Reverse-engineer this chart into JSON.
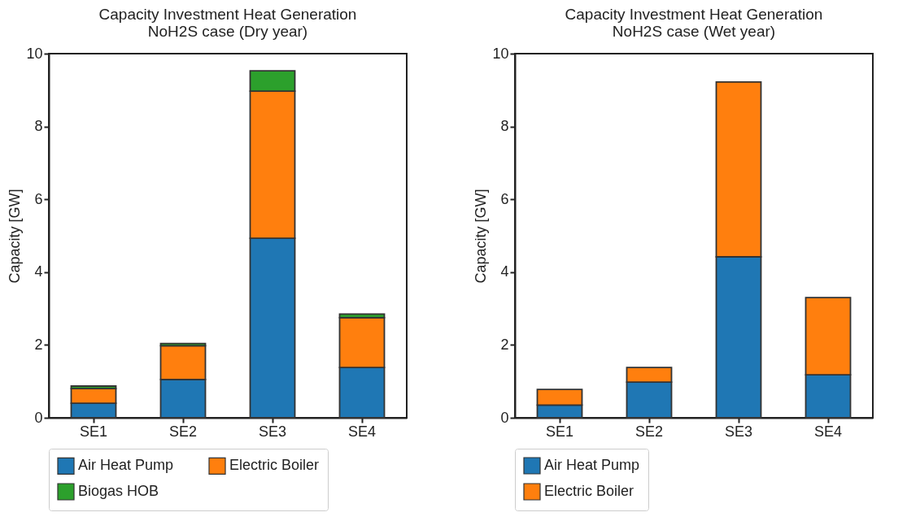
{
  "chart_data": [
    {
      "type": "bar",
      "title": "Capacity Investment Heat Generation\nNoH2S case (Dry year)",
      "ylabel": "Capacity [GW]",
      "categories": [
        "SE1",
        "SE2",
        "SE3",
        "SE4"
      ],
      "stacked": true,
      "ylim": [
        0,
        10
      ],
      "yticks": [
        0,
        2,
        4,
        6,
        8,
        10
      ],
      "grid": false,
      "legend": "bottom",
      "series": [
        {
          "name": "Air Heat Pump",
          "color": "#1f77b4",
          "values": [
            0.4,
            1.05,
            4.93,
            1.38
          ]
        },
        {
          "name": "Electric Boiler",
          "color": "#ff7f0e",
          "values": [
            0.4,
            0.93,
            4.04,
            1.37
          ]
        },
        {
          "name": "Biogas HOB",
          "color": "#2ca02c",
          "values": [
            0.07,
            0.06,
            0.56,
            0.1
          ]
        }
      ]
    },
    {
      "type": "bar",
      "title": "Capacity Investment Heat Generation\nNoH2S case (Wet year)",
      "ylabel": "Capacity [GW]",
      "categories": [
        "SE1",
        "SE2",
        "SE3",
        "SE4"
      ],
      "stacked": true,
      "ylim": [
        0,
        10
      ],
      "yticks": [
        0,
        2,
        4,
        6,
        8,
        10
      ],
      "grid": false,
      "legend": "bottom",
      "series": [
        {
          "name": "Air Heat Pump",
          "color": "#1f77b4",
          "values": [
            0.35,
            0.98,
            4.42,
            1.18
          ]
        },
        {
          "name": "Electric Boiler",
          "color": "#ff7f0e",
          "values": [
            0.43,
            0.4,
            4.8,
            2.12
          ]
        }
      ]
    }
  ]
}
